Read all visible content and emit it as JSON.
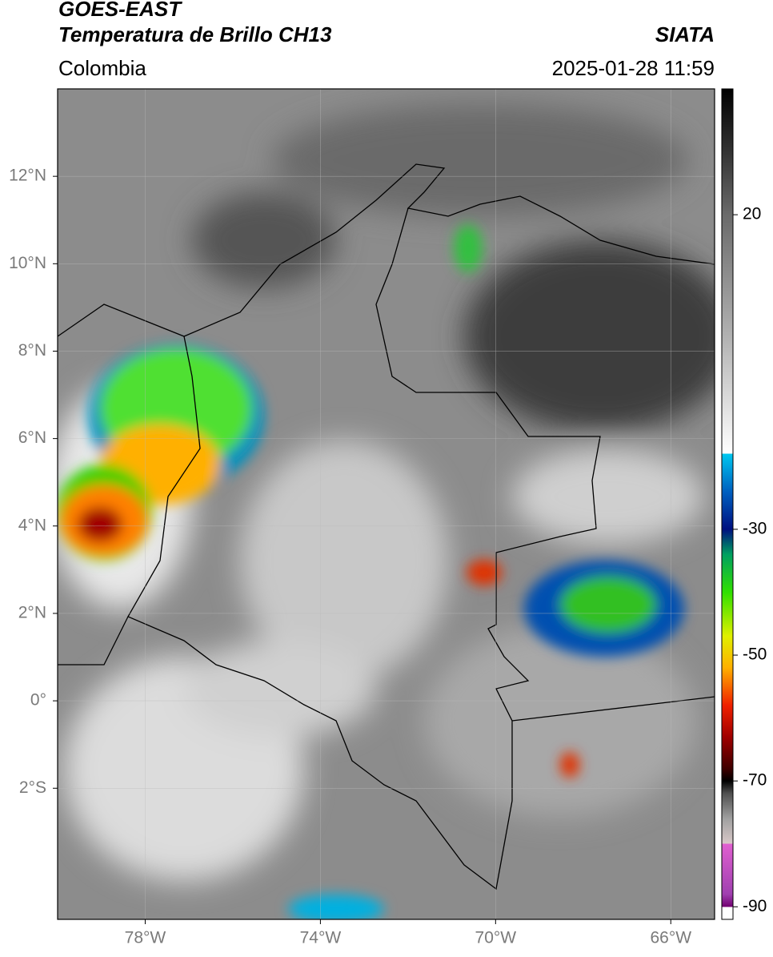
{
  "header": {
    "satellite": "GOES-EAST",
    "title": "Temperatura de Brillo CH13",
    "source": "SIATA",
    "region": "Colombia",
    "datetime": "2025-01-28 11:59"
  },
  "map": {
    "xlim": [
      -80,
      -65
    ],
    "ylim": [
      -5,
      14
    ],
    "grid": true,
    "xticks": [
      {
        "value": -78,
        "label": "78°W"
      },
      {
        "value": -74,
        "label": "74°W"
      },
      {
        "value": -70,
        "label": "70°W"
      },
      {
        "value": -66,
        "label": "66°W"
      }
    ],
    "yticks": [
      {
        "value": 12,
        "label": "12°N"
      },
      {
        "value": 10,
        "label": "10°N"
      },
      {
        "value": 8,
        "label": "8°N"
      },
      {
        "value": 6,
        "label": "6°N"
      },
      {
        "value": 4,
        "label": "4°N"
      },
      {
        "value": 2,
        "label": "2°N"
      },
      {
        "value": 0,
        "label": "0°"
      },
      {
        "value": -2,
        "label": "2°S"
      }
    ]
  },
  "colorbar": {
    "lim": [
      -92,
      40
    ],
    "ticks": [
      20,
      -30,
      -50,
      -70,
      -90
    ],
    "colorscale": [
      [
        40,
        "#000000"
      ],
      [
        30,
        "#333333"
      ],
      [
        20,
        "#6a6a6a"
      ],
      [
        0,
        "#b4b4b4"
      ],
      [
        -18,
        "#ffffff"
      ],
      [
        -18,
        "#00c8f0"
      ],
      [
        -24,
        "#0060c0"
      ],
      [
        -30,
        "#001080"
      ],
      [
        -34,
        "#00a060"
      ],
      [
        -40,
        "#30e000"
      ],
      [
        -47,
        "#e0f000"
      ],
      [
        -52,
        "#ffb000"
      ],
      [
        -58,
        "#f02000"
      ],
      [
        -63,
        "#a00000"
      ],
      [
        -68,
        "#400000"
      ],
      [
        -70,
        "#000000"
      ],
      [
        -72,
        "#505050"
      ],
      [
        -76,
        "#a0a0a0"
      ],
      [
        -80,
        "#d8c8c8"
      ],
      [
        -80,
        "#e060d0"
      ],
      [
        -88,
        "#a040b0"
      ],
      [
        -90,
        "#700070"
      ],
      [
        -90,
        "#ffffff"
      ],
      [
        -92,
        "#ffffff"
      ]
    ]
  }
}
